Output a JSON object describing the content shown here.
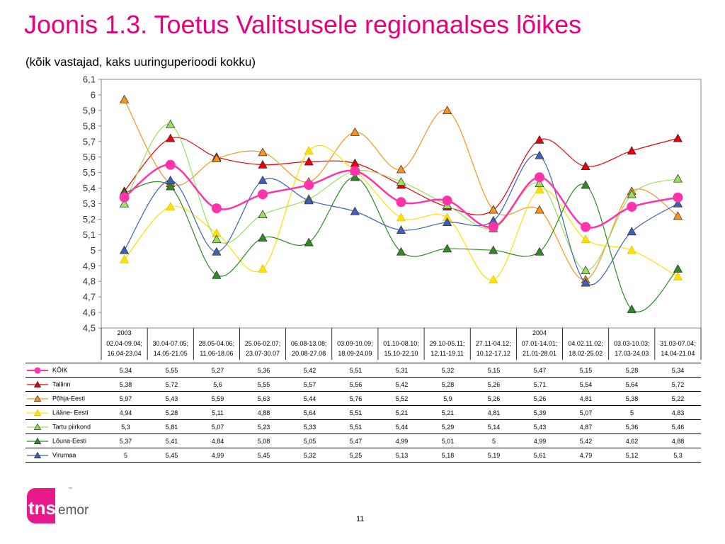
{
  "title": "Joonis 1.3. Toetus Valitsusele regionaalses lõikes",
  "subtitle": "(kõik vastajad, kaks uuringuperioodi kokku)",
  "page_number": "11",
  "logo": {
    "text_left": "tns",
    "text_right": "emor",
    "tm": "™"
  },
  "colors": {
    "accent": "#e6007e"
  },
  "chart_data": {
    "type": "line",
    "title": "Joonis 1.3. Toetus Valitsusele regionaalses lõikes",
    "subtitle": "(kõik vastajad, kaks uuringuperioodi kokku)",
    "ylim": [
      4.5,
      6.1
    ],
    "ytick_step": 0.1,
    "ytick_labels": [
      "4,5",
      "4,6",
      "4,7",
      "4,8",
      "4,9",
      "5",
      "5,1",
      "5,2",
      "5,3",
      "5,4",
      "5,5",
      "5,6",
      "5,7",
      "5,8",
      "5,9",
      "6",
      "6,1"
    ],
    "grid": false,
    "legend_position": "table-bottom",
    "year_labels": [
      {
        "index": 0,
        "text": "2003"
      },
      {
        "index": 9,
        "text": "2004"
      }
    ],
    "categories": [
      [
        "02.04-09.04;",
        "16.04-23.04"
      ],
      [
        "30.04-07.05;",
        "14.05-21.05"
      ],
      [
        "28.05-04.06;",
        "11.06-18.06"
      ],
      [
        "25.06-02.07;",
        "23.07-30.07"
      ],
      [
        "06.08-13.08;",
        "20.08-27.08"
      ],
      [
        "03.09-10.09;",
        "18.09-24.09"
      ],
      [
        "01.10-08.10;",
        "15.10-22.10"
      ],
      [
        "29.10-05.11;",
        "12.11-19.11"
      ],
      [
        "27.11-04.12;",
        "10.12-17.12"
      ],
      [
        "07.01-14.01;",
        "21.01-28.01"
      ],
      [
        "04.02.11.02;",
        "18.02-25.02"
      ],
      [
        "03.03-10.03;",
        "17.03-24.03"
      ],
      [
        "31.03-07.04;",
        "14.04-21.04"
      ]
    ],
    "series": [
      {
        "name": "KÕIK",
        "color": "#ff33aa",
        "marker": "circle",
        "values": [
          5.34,
          5.55,
          5.27,
          5.36,
          5.42,
          5.51,
          5.31,
          5.32,
          5.15,
          5.47,
          5.15,
          5.28,
          5.34
        ],
        "labels": [
          "5,34",
          "5,55",
          "5,27",
          "5,36",
          "5,42",
          "5,51",
          "5,31",
          "5,32",
          "5,15",
          "5,47",
          "5,15",
          "5,28",
          "5,34"
        ]
      },
      {
        "name": "Tallinn",
        "color": "#e8000b",
        "marker": "triangle",
        "values": [
          5.38,
          5.72,
          5.6,
          5.55,
          5.57,
          5.56,
          5.42,
          5.28,
          5.26,
          5.71,
          5.54,
          5.64,
          5.72
        ],
        "labels": [
          "5,38",
          "5,72",
          "5,6",
          "5,55",
          "5,57",
          "5,56",
          "5,42",
          "5,28",
          "5,26",
          "5,71",
          "5,54",
          "5,64",
          "5,72"
        ]
      },
      {
        "name": "Põhja-Eesti",
        "color": "#f7941d",
        "marker": "triangle",
        "values": [
          5.97,
          5.43,
          5.59,
          5.63,
          5.44,
          5.76,
          5.52,
          5.9,
          5.26,
          5.26,
          4.81,
          5.38,
          5.22
        ],
        "labels": [
          "5,97",
          "5,43",
          "5,59",
          "5,63",
          "5,44",
          "5,76",
          "5,52",
          "5,9",
          "5,26",
          "5,26",
          "4,81",
          "5,38",
          "5,22"
        ]
      },
      {
        "name": "Lääne- Eesti",
        "color": "#ffe000",
        "marker": "triangle",
        "values": [
          4.94,
          5.28,
          5.11,
          4.88,
          5.64,
          5.51,
          5.21,
          5.21,
          4.81,
          5.39,
          5.07,
          5,
          4.83
        ],
        "labels": [
          "4,94",
          "5,28",
          "5,11",
          "4,88",
          "5,64",
          "5,51",
          "5,21",
          "5,21",
          "4,81",
          "5,39",
          "5,07",
          "5",
          "4,83"
        ]
      },
      {
        "name": "Tartu piirkond",
        "color": "#99e05c",
        "marker": "triangle",
        "values": [
          5.3,
          5.81,
          5.07,
          5.23,
          5.33,
          5.51,
          5.44,
          5.29,
          5.14,
          5.43,
          4.87,
          5.36,
          5.46
        ],
        "labels": [
          "5,3",
          "5,81",
          "5,07",
          "5,23",
          "5,33",
          "5,51",
          "5,44",
          "5,29",
          "5,14",
          "5,43",
          "4,87",
          "5,36",
          "5,46"
        ]
      },
      {
        "name": "Lõuna-Eesti",
        "color": "#2e8b22",
        "marker": "triangle",
        "values": [
          5.37,
          5.41,
          4.84,
          5.08,
          5.05,
          5.47,
          4.99,
          5.01,
          5,
          4.99,
          5.42,
          4.62,
          4.88
        ],
        "labels": [
          "5,37",
          "5,41",
          "4,84",
          "5,08",
          "5,05",
          "5,47",
          "4,99",
          "5,01",
          "5",
          "4,99",
          "5,42",
          "4,62",
          "4,88"
        ]
      },
      {
        "name": "Virumaa",
        "color": "#3f5fb8",
        "marker": "triangle",
        "values": [
          5,
          5.45,
          4.99,
          5.45,
          5.32,
          5.25,
          5.13,
          5.18,
          5.19,
          5.61,
          4.79,
          5.12,
          5.3
        ],
        "labels": [
          "5",
          "5,45",
          "4,99",
          "5,45",
          "5,32",
          "5,25",
          "5,13",
          "5,18",
          "5,19",
          "5,61",
          "4,79",
          "5,12",
          "5,3"
        ]
      }
    ]
  }
}
